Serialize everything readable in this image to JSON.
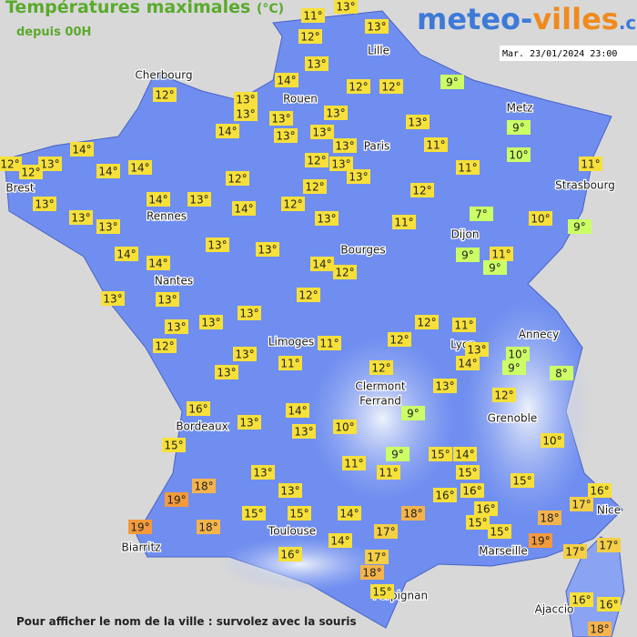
{
  "header": {
    "title": "Températures maximales",
    "unit": "(°C)",
    "subtitle": "depuis 00H"
  },
  "brand": {
    "part1": "meteo-",
    "part2": "villes",
    "part3": ".com"
  },
  "timestamp": "Mar. 23/01/2024 23:00",
  "cities": [
    "Cherbourg",
    "Rouen",
    "Lille",
    "Paris",
    "Metz",
    "Strasbourg",
    "Brest",
    "Rennes",
    "Dijon",
    "Bourges",
    "Nantes",
    "Annecy",
    "Lyon",
    "Limoges",
    "Clermont",
    "Ferrand",
    "Grenoble",
    "Bordeaux",
    "Nice",
    "Toulouse",
    "Marseille",
    "Biarritz",
    "Perpignan",
    "Ajaccio"
  ],
  "temperatures": [
    "11°",
    "13°",
    "12°",
    "13°",
    "13°",
    "12°",
    "14°",
    "12°",
    "12°",
    "9°",
    "13°",
    "13°",
    "13°",
    "13°",
    "14°",
    "13°",
    "13°",
    "13°",
    "9°",
    "13°",
    "14°",
    "12°",
    "13°",
    "12°",
    "14°",
    "14°",
    "11°",
    "10°",
    "12°",
    "13°",
    "11°",
    "11°",
    "12°",
    "13°",
    "12°",
    "13°",
    "14°",
    "13°",
    "14°",
    "12°",
    "12°",
    "13°",
    "13°",
    "13°",
    "11°",
    "7°",
    "10°",
    "9°",
    "13°",
    "13°",
    "14°",
    "14°",
    "14°",
    "12°",
    "9°",
    "11°",
    "9°",
    "13°",
    "13°",
    "12°",
    "13°",
    "13°",
    "13°",
    "12°",
    "11°",
    "12°",
    "11°",
    "12°",
    "13°",
    "14°",
    "10°",
    "9°",
    "13°",
    "13°",
    "11°",
    "12°",
    "8°",
    "13°",
    "12°",
    "16°",
    "9°",
    "14°",
    "13°",
    "13°",
    "10°",
    "15°",
    "11°",
    "9°",
    "15°",
    "14°",
    "10°",
    "11°",
    "15°",
    "13°",
    "18°",
    "13°",
    "15°",
    "16°",
    "16°",
    "16°",
    "19°",
    "16°",
    "15°",
    "15°",
    "14°",
    "18°",
    "17°",
    "15°",
    "15°",
    "18°",
    "19°",
    "18°",
    "17°",
    "19°",
    "14°",
    "16°",
    "17°",
    "17°",
    "17°",
    "18°",
    "15°",
    "16°",
    "16°",
    "18°"
  ],
  "footer": "Pour afficher le nom de la ville : survolez avec la souris"
}
